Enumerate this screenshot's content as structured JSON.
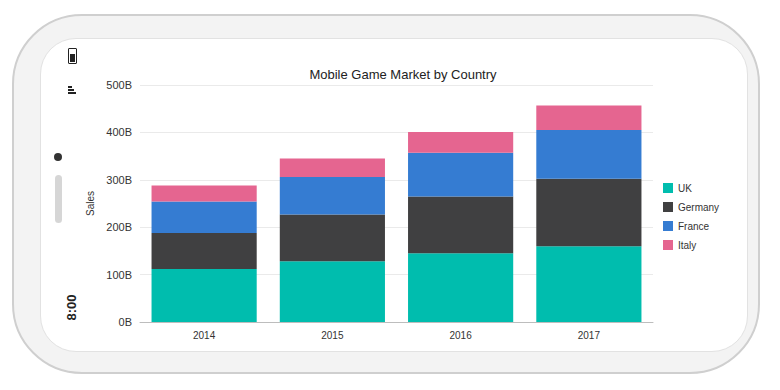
{
  "status_bar": {
    "time": "8:00"
  },
  "chart_data": {
    "type": "bar",
    "title": "Mobile Game Market by Country",
    "categories": [
      "2014",
      "2015",
      "2016",
      "2017"
    ],
    "series": [
      {
        "name": "UK",
        "color": "#00bdae",
        "values": [
          112,
          128,
          145,
          160
        ]
      },
      {
        "name": "Germany",
        "color": "#404041",
        "values": [
          76,
          99,
          120,
          142
        ]
      },
      {
        "name": "France",
        "color": "#357cd2",
        "values": [
          66,
          79,
          92,
          103
        ]
      },
      {
        "name": "Italy",
        "color": "#e56590",
        "values": [
          34,
          39,
          44,
          52
        ]
      }
    ],
    "y_label": "Sales",
    "ylim": [
      0,
      500
    ],
    "yticks": [
      {
        "value": 0,
        "label": "0B"
      },
      {
        "value": 100,
        "label": "100B"
      },
      {
        "value": 200,
        "label": "200B"
      },
      {
        "value": 300,
        "label": "300B"
      },
      {
        "value": 400,
        "label": "400B"
      },
      {
        "value": 500,
        "label": "500B"
      }
    ],
    "stacked": true,
    "grid": true,
    "legend": "right"
  }
}
